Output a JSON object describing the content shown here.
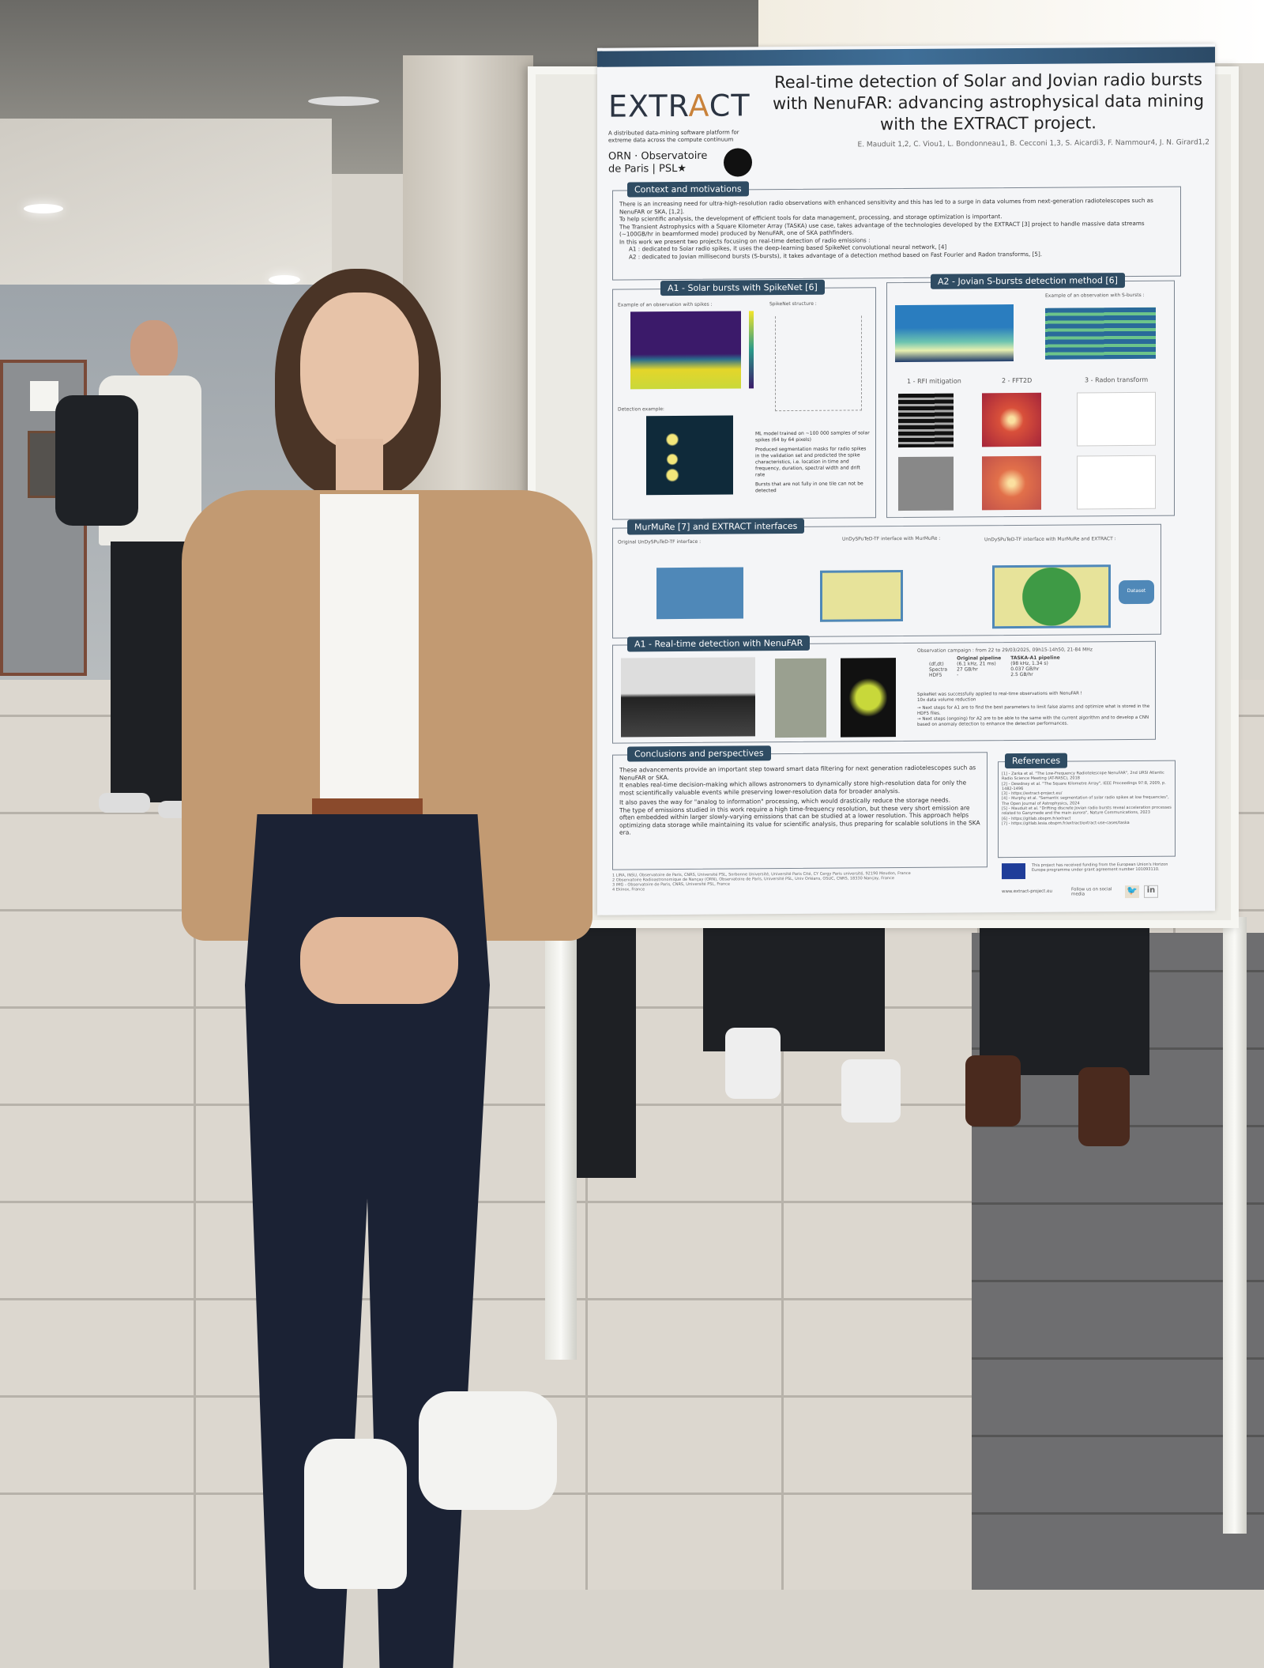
{
  "poster": {
    "logo": "EXTRACT",
    "tagline": "A distributed data-mining software platform for extreme data across the compute continuum",
    "institutions": "ORN · Observatoire de Paris | PSL★",
    "title": "Real-time detection of Solar and Jovian radio bursts with NenuFAR: advancing astrophysical data mining with the EXTRACT project.",
    "authors": "E. Mauduit 1,2, C. Viou1, L. Bondonneau1, B. Cecconi 1,3, S. Aicardi3, F. Nammour4, J. N. Girard1,2",
    "context": {
      "heading": "Context and motivations",
      "bullets": [
        "There is an increasing need for ultra-high-resolution radio observations with enhanced sensitivity and this has led to a surge in data volumes from next-generation radiotelescopes such as NenuFAR or SKA, [1,2].",
        "To help scientific analysis, the development of efficient tools for data management, processing, and storage optimization is important.",
        "The Transient Astrophysics with a Square Kilometer Array (TASKA) use case, takes advantage of the technologies developed by the EXTRACT [3] project to handle massive data streams (~100GB/hr in beamformed mode) produced by NenuFAR, one of SKA pathfinders.",
        "In this work we present two projects focusing on real-time detection of radio emissions :",
        "A1 : dedicated to Solar radio spikes, it uses the deep-learning based SpikeNet convolutional neural network, [4]",
        "A2 : dedicated to Jovian millisecond bursts (S-bursts), it takes advantage of a detection method based on Fast Fourier and Radon transforms, [5]."
      ]
    },
    "a1": {
      "heading": "A1 - Solar bursts with SpikeNet [6]",
      "example_label": "Example of an observation with spikes :",
      "structure_label": "SpikeNet structure :",
      "detection_label": "Detection example:",
      "notes": [
        "ML model trained on ~100 000 samples of solar spikes (64 by 64 pixels)",
        "Produced segmentation masks for radio spikes in the validation set and predicted the spike characteristics, i.e. location in time and frequency, duration, spectral width and drift rate",
        "Bursts that are not fully in one tile can not be detected"
      ]
    },
    "a2": {
      "heading": "A2 - Jovian S-bursts detection method [6]",
      "example_label": "Example of an observation with S-bursts :",
      "steps": [
        "1 - RFI mitigation",
        "2 - FFT2D",
        "3 - Radon transform"
      ]
    },
    "murmure": {
      "heading": "MurMuRe [7] and EXTRACT interfaces",
      "panels": [
        "Original UnDySPuTeD-TF interface :",
        "UnDySPuTeD-TF interface with MurMuRe :",
        "UnDySPuTeD-TF interface with MurMuRe and EXTRACT :"
      ],
      "database": "Dataset"
    },
    "realtime": {
      "heading": "A1 - Real-time detection with NenuFAR",
      "campaign": "Observation campaign : from 22 to 29/03/2025, 09h15-14h50, 21-84 MHz",
      "table": {
        "headers": [
          "",
          "Original pipeline",
          "TASKA-A1 pipeline"
        ],
        "rows": [
          [
            "(df,dt)",
            "(6.1 kHz, 21 ms)",
            "(98 kHz, 1.34 s)"
          ],
          [
            "Spectra",
            "27 GB/hr",
            "0.037 GB/hr"
          ],
          [
            "HDF5",
            "-",
            "2.5 GB/hr"
          ]
        ]
      },
      "notes": [
        "SpikeNet was successfully applied to real-time observations with NenuFAR !",
        "10x data volume reduction"
      ],
      "next": [
        "→ Next steps for A1 are to find the best parameters to limit false alarms and optimize what is stored in the HDF5 files.",
        "→ Next steps (ongoing) for A2 are to be able to the same with the current algorithm and to develop a CNN based on anomaly detection to enhance the detection performances."
      ]
    },
    "conclusions": {
      "heading": "Conclusions and perspectives",
      "bullets": [
        "These advancements provide an important step toward smart data filtering for next generation radiotelescopes such as NenuFAR or SKA.",
        "It enables real-time decision-making which allows astronomers to dynamically store high-resolution data for only the most scientifically valuable events while preserving lower-resolution data for broader analysis.",
        "It also paves the way for \"analog to information\" processing, which would drastically reduce the storage needs.",
        "The type of emissions studied in this work require a high time-frequency resolution, but these very short emission are often embedded within larger slowly-varying emissions that can be studied at a lower resolution. This approach helps optimizing data storage while maintaining its value for scientific analysis, thus preparing for scalable solutions in the SKA era."
      ]
    },
    "affiliations": [
      "1 LIRA, INSU, Observatoire de Paris, CNRS, Université PSL, Sorbonne Université, Université Paris Cité, CY Cergy Paris université, 92190 Meudon, France",
      "2 Observatoire Radioastronomique de Nançay (ORN), Observatoire de Paris, Université PSL, Univ Orléans, OSUC, CNRS, 18330 Nançay, France",
      "3 IMG - Observatoire de Paris, CNRS, Université PSL, France",
      "4 Ekinox, France"
    ],
    "references": {
      "heading": "References",
      "items": [
        "[1] - Zarka et al. \"The Low-Frequency Radiotelescope NenuFAR\", 2nd URSI Atlantic Radio Science Meeting (AT-RASC), 2018",
        "[2] - Dewdney et al. \"The Square Kilometre Array\", IEEE Proceedings 97:8, 2009, p. 1482-1496",
        "[3] - https://extract-project.eu/",
        "[4] - Murphy et al. \"Semantic segmentation of solar radio spikes at low frequencies\", The Open Journal of Astrophysics, 2024",
        "[5] - Mauduit et al. \"Drifting discrete Jovian radio bursts reveal acceleration processes related to Ganymede and the main aurora\", Nature Communications, 2023",
        "[6] - https://gitlab.obspm.fr/extract",
        "[7] - https://gitlab.lesia.obspm.fr/extract/extract-use-cases/taska"
      ]
    },
    "funding": "This project has received funding from the European Union's Horizon Europe programme under grant agreement number 101093110.",
    "website": "www.extract-project.eu",
    "follow": "Follow us on social media",
    "social": [
      "twitter-icon",
      "linkedin-icon"
    ]
  },
  "colors": {
    "header": "#2f4c63",
    "accent": "#c9823a",
    "cardigan": "#c29a72",
    "pants": "#1b2234"
  }
}
